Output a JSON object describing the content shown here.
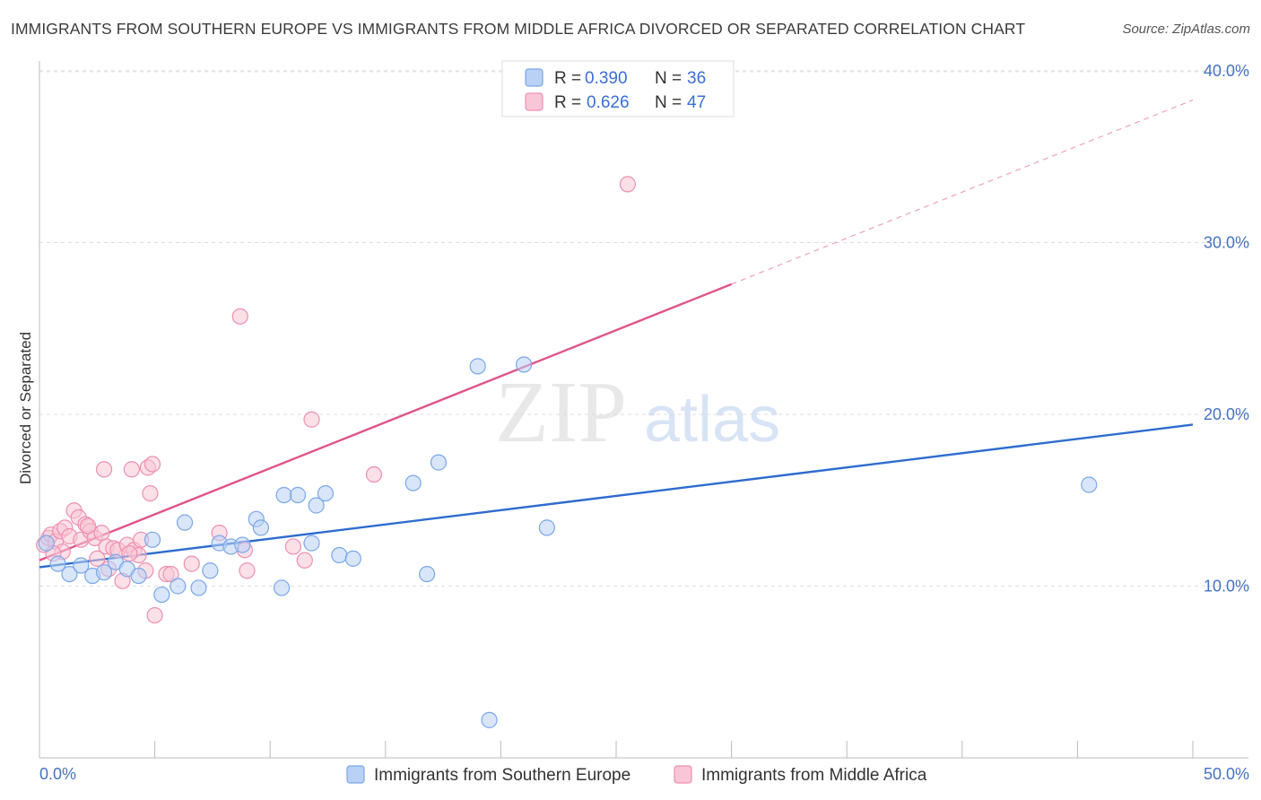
{
  "title": "IMMIGRANTS FROM SOUTHERN EUROPE VS IMMIGRANTS FROM MIDDLE AFRICA DIVORCED OR SEPARATED CORRELATION CHART",
  "source": "Source: ZipAtlas.com",
  "watermark": {
    "zip": "ZIP",
    "atlas": "atlas"
  },
  "chart_data": {
    "type": "scatter",
    "title": "IMMIGRANTS FROM SOUTHERN EUROPE VS IMMIGRANTS FROM MIDDLE AFRICA DIVORCED OR SEPARATED CORRELATION CHART",
    "xlabel": "",
    "ylabel": "Divorced or Separated",
    "xlim": [
      0,
      50
    ],
    "ylim": [
      0,
      40
    ],
    "x_tick_labels": {
      "min": "0.0%",
      "max": "50.0%"
    },
    "y_ticks": [
      {
        "value": 10,
        "label": "10.0%"
      },
      {
        "value": 20,
        "label": "20.0%"
      },
      {
        "value": 30,
        "label": "30.0%"
      },
      {
        "value": 40,
        "label": "40.0%"
      }
    ],
    "series": [
      {
        "name": "Immigrants from Southern Europe",
        "color": "#7aa7e8",
        "fill": "#b9d1f4",
        "line_color": "#2e6ccf",
        "R": "0.390",
        "N": "36",
        "trend": {
          "x0": 0,
          "y0": 11.1,
          "x1": 50,
          "y1": 19.4,
          "dashed_from": null
        },
        "points": [
          [
            0.3,
            12.5
          ],
          [
            0.8,
            11.3
          ],
          [
            1.3,
            10.7
          ],
          [
            1.8,
            11.2
          ],
          [
            2.3,
            10.6
          ],
          [
            2.8,
            10.8
          ],
          [
            3.3,
            11.4
          ],
          [
            3.8,
            11.0
          ],
          [
            4.3,
            10.6
          ],
          [
            4.9,
            12.7
          ],
          [
            5.3,
            9.5
          ],
          [
            6.0,
            10.0
          ],
          [
            6.3,
            13.7
          ],
          [
            6.9,
            9.9
          ],
          [
            7.4,
            10.9
          ],
          [
            7.8,
            12.5
          ],
          [
            8.3,
            12.3
          ],
          [
            8.8,
            12.4
          ],
          [
            9.4,
            13.9
          ],
          [
            9.6,
            13.4
          ],
          [
            10.5,
            9.9
          ],
          [
            10.6,
            15.3
          ],
          [
            11.2,
            15.3
          ],
          [
            11.8,
            12.5
          ],
          [
            12.0,
            14.7
          ],
          [
            12.4,
            15.4
          ],
          [
            13.0,
            11.8
          ],
          [
            13.6,
            11.6
          ],
          [
            16.2,
            16.0
          ],
          [
            16.8,
            10.7
          ],
          [
            17.3,
            17.2
          ],
          [
            19.0,
            22.8
          ],
          [
            19.5,
            2.2
          ],
          [
            21.0,
            22.9
          ],
          [
            22.0,
            13.4
          ],
          [
            45.5,
            15.9
          ]
        ]
      },
      {
        "name": "Immigrants from Middle Africa",
        "color": "#ee8fb0",
        "fill": "#f8c6d6",
        "line_color": "#e0558a",
        "R": "0.626",
        "N": "47",
        "trend": {
          "x0": 0,
          "y0": 11.5,
          "x1": 50,
          "y1": 38.3,
          "dashed_from": 30
        },
        "points": [
          [
            0.2,
            12.4
          ],
          [
            0.4,
            12.8
          ],
          [
            0.5,
            13.0
          ],
          [
            0.7,
            12.6
          ],
          [
            0.9,
            13.2
          ],
          [
            1.1,
            13.4
          ],
          [
            1.3,
            12.9
          ],
          [
            1.5,
            14.4
          ],
          [
            1.7,
            14.0
          ],
          [
            1.8,
            12.7
          ],
          [
            2.0,
            13.6
          ],
          [
            2.2,
            13.2
          ],
          [
            2.4,
            12.8
          ],
          [
            2.5,
            11.6
          ],
          [
            2.7,
            13.1
          ],
          [
            2.8,
            16.8
          ],
          [
            2.9,
            12.3
          ],
          [
            3.0,
            11.0
          ],
          [
            3.2,
            12.2
          ],
          [
            3.4,
            12.1
          ],
          [
            3.6,
            10.3
          ],
          [
            3.8,
            12.4
          ],
          [
            4.0,
            16.8
          ],
          [
            4.1,
            12.1
          ],
          [
            4.3,
            11.8
          ],
          [
            4.4,
            12.7
          ],
          [
            4.6,
            10.9
          ],
          [
            4.7,
            16.9
          ],
          [
            4.8,
            15.4
          ],
          [
            4.9,
            17.1
          ],
          [
            5.0,
            8.3
          ],
          [
            5.5,
            10.7
          ],
          [
            5.7,
            10.7
          ],
          [
            6.6,
            11.3
          ],
          [
            7.8,
            13.1
          ],
          [
            8.7,
            25.7
          ],
          [
            8.9,
            12.1
          ],
          [
            9.0,
            10.9
          ],
          [
            11.0,
            12.3
          ],
          [
            11.5,
            11.5
          ],
          [
            11.8,
            19.7
          ],
          [
            14.5,
            16.5
          ],
          [
            25.5,
            33.4
          ],
          [
            1.0,
            12.0
          ],
          [
            0.6,
            11.9
          ],
          [
            2.1,
            13.5
          ],
          [
            3.9,
            11.9
          ]
        ]
      }
    ]
  }
}
